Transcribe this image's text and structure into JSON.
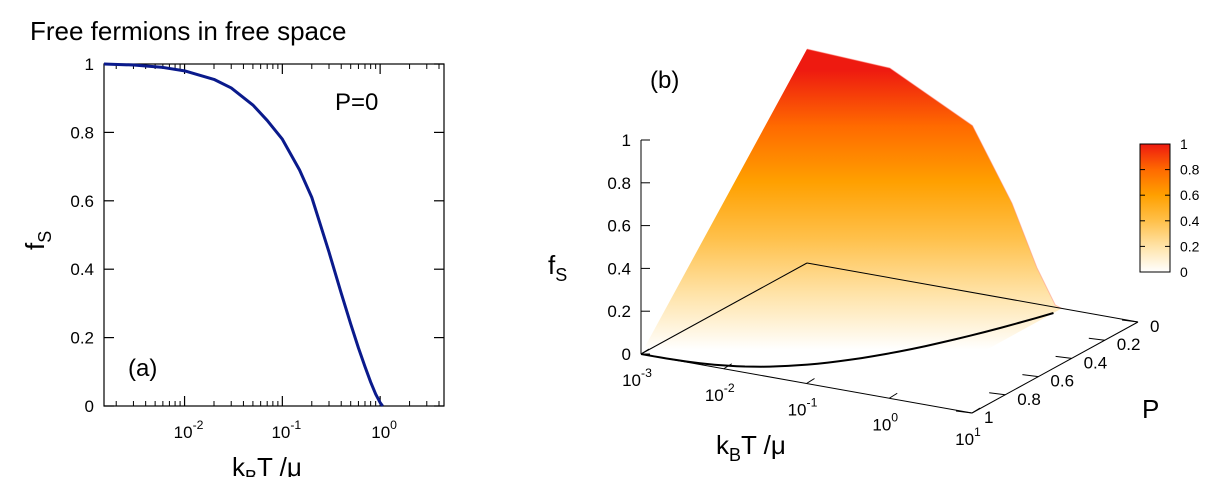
{
  "figure": {
    "title": "Free fermions in free space"
  },
  "chart_data": [
    {
      "type": "line",
      "panel_label": "(a)",
      "annotation": "P=0",
      "xlabel": {
        "main": "k",
        "sub": "B",
        "rest": "T /μ"
      },
      "ylabel": {
        "main": "f",
        "sub": "S"
      },
      "x_scale": "log",
      "xlim": [
        0.0015,
        4.5
      ],
      "ylim": [
        0,
        1
      ],
      "x_ticks": [
        {
          "value": 0.01,
          "base": "10",
          "exp": "-2"
        },
        {
          "value": 0.1,
          "base": "10",
          "exp": "-1"
        },
        {
          "value": 1,
          "base": "10",
          "exp": "0"
        }
      ],
      "y_ticks": [
        {
          "value": 0,
          "label": "0"
        },
        {
          "value": 0.2,
          "label": "0.2"
        },
        {
          "value": 0.4,
          "label": "0.4"
        },
        {
          "value": 0.6,
          "label": "0.6"
        },
        {
          "value": 0.8,
          "label": "0.8"
        },
        {
          "value": 1,
          "label": "1"
        }
      ],
      "grid": false,
      "series": [
        {
          "color": "#0a1a8c",
          "x": [
            0.0015,
            0.003,
            0.006,
            0.01,
            0.02,
            0.03,
            0.05,
            0.07,
            0.1,
            0.15,
            0.2,
            0.3,
            0.4,
            0.5,
            0.6,
            0.7,
            0.8,
            0.9,
            1.0,
            1.06
          ],
          "y": [
            1.0,
            0.997,
            0.99,
            0.98,
            0.955,
            0.93,
            0.88,
            0.835,
            0.78,
            0.69,
            0.61,
            0.45,
            0.33,
            0.24,
            0.17,
            0.115,
            0.07,
            0.035,
            0.01,
            0.0
          ]
        }
      ]
    },
    {
      "type": "surface",
      "panel_label": "(b)",
      "xlabel": {
        "main": "k",
        "sub": "B",
        "rest": "T /μ"
      },
      "ylabel": "P",
      "zlabel": {
        "main": "f",
        "sub": "S"
      },
      "x_scale": "log",
      "xlim": [
        0.001,
        10
      ],
      "plim": [
        0,
        1
      ],
      "zlim": [
        0,
        1
      ],
      "x_ticks": [
        {
          "value": 0.001,
          "base": "10",
          "exp": "-3"
        },
        {
          "value": 0.01,
          "base": "10",
          "exp": "-2"
        },
        {
          "value": 0.1,
          "base": "10",
          "exp": "-1"
        },
        {
          "value": 1,
          "base": "10",
          "exp": "0"
        },
        {
          "value": 10,
          "base": "10",
          "exp": "1"
        }
      ],
      "p_ticks": [
        {
          "value": 0,
          "label": "0"
        },
        {
          "value": 0.2,
          "label": "0.2"
        },
        {
          "value": 0.4,
          "label": "0.4"
        },
        {
          "value": 0.6,
          "label": "0.6"
        },
        {
          "value": 0.8,
          "label": "0.8"
        },
        {
          "value": 1,
          "label": "1"
        }
      ],
      "z_ticks": [
        {
          "value": 0,
          "label": "0"
        },
        {
          "value": 0.2,
          "label": "0.2"
        },
        {
          "value": 0.4,
          "label": "0.4"
        },
        {
          "value": 0.6,
          "label": "0.6"
        },
        {
          "value": 0.8,
          "label": "0.8"
        },
        {
          "value": 1,
          "label": "1"
        }
      ],
      "colorbar": {
        "ticks": [
          "0",
          "0.2",
          "0.4",
          "0.6",
          "0.8",
          "1"
        ],
        "colors": [
          "#ffffff",
          "#ffe3a8",
          "#ffc04a",
          "#ffa000",
          "#ff6a00",
          "#ee1a10"
        ]
      },
      "surface_edge_x": [
        0.001,
        0.01,
        0.1,
        0.3,
        0.6,
        1.0,
        1.2
      ],
      "surface_edge_z": [
        1.0,
        0.98,
        0.78,
        0.45,
        0.17,
        0.01,
        0.0
      ]
    }
  ]
}
